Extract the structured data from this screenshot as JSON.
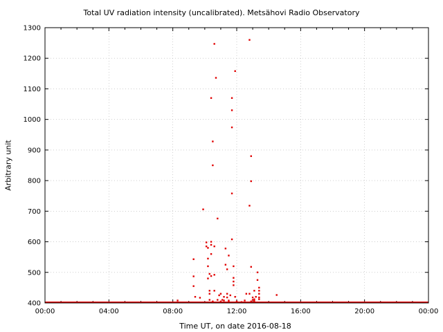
{
  "chart_data": {
    "type": "scatter",
    "title": "Total UV radiation intensity (uncalibrated). Metsähovi Radio Observatory",
    "xlabel": "Time UT, on date 2016-08-18",
    "ylabel": "Arbitrary unit",
    "xlim": [
      0,
      24
    ],
    "ylim": [
      400,
      1300
    ],
    "x_ticks": [
      "00:00",
      "04:00",
      "08:00",
      "12:00",
      "16:00",
      "20:00",
      "00:00"
    ],
    "y_ticks": [
      400,
      500,
      600,
      700,
      800,
      900,
      1000,
      1100,
      1200,
      1300
    ],
    "grid": true,
    "color": "#e00000",
    "baseline": {
      "x_start": 0,
      "x_end": 24,
      "y": 400
    },
    "points": [
      [
        8.3,
        408
      ],
      [
        9.3,
        543
      ],
      [
        9.3,
        487
      ],
      [
        9.3,
        455
      ],
      [
        9.4,
        420
      ],
      [
        9.7,
        417
      ],
      [
        9.9,
        706
      ],
      [
        10.1,
        598
      ],
      [
        10.1,
        585
      ],
      [
        10.2,
        580
      ],
      [
        10.2,
        545
      ],
      [
        10.2,
        520
      ],
      [
        10.3,
        495
      ],
      [
        10.2,
        480
      ],
      [
        10.3,
        440
      ],
      [
        10.3,
        430
      ],
      [
        10.3,
        410
      ],
      [
        10.4,
        600
      ],
      [
        10.4,
        590
      ],
      [
        10.4,
        560
      ],
      [
        10.4,
        488
      ],
      [
        10.4,
        1070
      ],
      [
        10.5,
        928
      ],
      [
        10.5,
        850
      ],
      [
        10.5,
        405
      ],
      [
        10.6,
        585
      ],
      [
        10.6,
        492
      ],
      [
        10.6,
        440
      ],
      [
        10.6,
        1247
      ],
      [
        10.7,
        1136
      ],
      [
        10.8,
        676
      ],
      [
        10.8,
        410
      ],
      [
        10.9,
        425
      ],
      [
        11.0,
        430
      ],
      [
        11.1,
        410
      ],
      [
        11.2,
        408
      ],
      [
        11.2,
        420
      ],
      [
        11.3,
        578
      ],
      [
        11.3,
        525
      ],
      [
        11.4,
        510
      ],
      [
        11.4,
        430
      ],
      [
        11.4,
        418
      ],
      [
        11.5,
        555
      ],
      [
        11.5,
        408
      ],
      [
        11.6,
        425
      ],
      [
        11.7,
        974
      ],
      [
        11.7,
        1030
      ],
      [
        11.7,
        1070
      ],
      [
        11.7,
        758
      ],
      [
        11.7,
        608
      ],
      [
        11.8,
        482
      ],
      [
        11.8,
        470
      ],
      [
        11.8,
        458
      ],
      [
        11.8,
        520
      ],
      [
        11.9,
        1158
      ],
      [
        11.9,
        420
      ],
      [
        12.0,
        405
      ],
      [
        12.5,
        408
      ],
      [
        12.6,
        430
      ],
      [
        12.8,
        430
      ],
      [
        12.8,
        1260
      ],
      [
        12.9,
        880
      ],
      [
        12.9,
        798
      ],
      [
        12.8,
        718
      ],
      [
        12.9,
        518
      ],
      [
        13.0,
        410
      ],
      [
        13.0,
        418
      ],
      [
        13.1,
        440
      ],
      [
        13.1,
        412
      ],
      [
        13.2,
        420
      ],
      [
        13.3,
        500
      ],
      [
        13.3,
        475
      ],
      [
        13.4,
        450
      ],
      [
        13.4,
        440
      ],
      [
        13.4,
        430
      ],
      [
        13.4,
        418
      ],
      [
        13.4,
        412
      ],
      [
        14.5,
        426
      ],
      [
        11.0,
        405
      ],
      [
        11.5,
        403
      ],
      [
        12.3,
        403
      ],
      [
        12.9,
        405
      ],
      [
        13.1,
        407
      ]
    ]
  }
}
